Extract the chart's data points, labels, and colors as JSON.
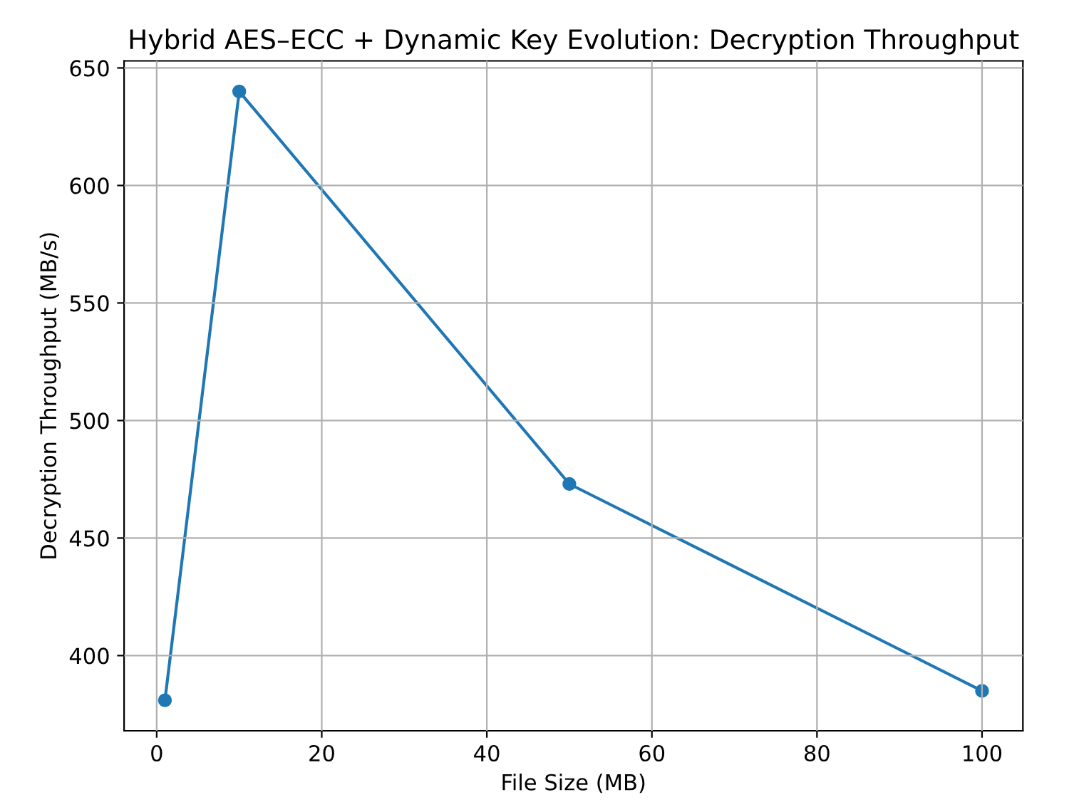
{
  "chart_data": {
    "type": "line",
    "title": "Hybrid AES–ECC + Dynamic Key Evolution: Decryption Throughput",
    "xlabel": "File Size (MB)",
    "ylabel": "Decryption Throughput (MB/s)",
    "x": [
      1,
      10,
      50,
      100
    ],
    "series": [
      {
        "color": "#1f77b4",
        "values": [
          381,
          640,
          473,
          385
        ]
      }
    ],
    "xlim": [
      -3.95,
      104.95
    ],
    "ylim": [
      368,
      653
    ],
    "xticks": [
      0,
      20,
      40,
      60,
      80,
      100
    ],
    "yticks": [
      400,
      450,
      500,
      550,
      600,
      650
    ],
    "grid": true,
    "marker": "circle",
    "line_style": "solid"
  }
}
